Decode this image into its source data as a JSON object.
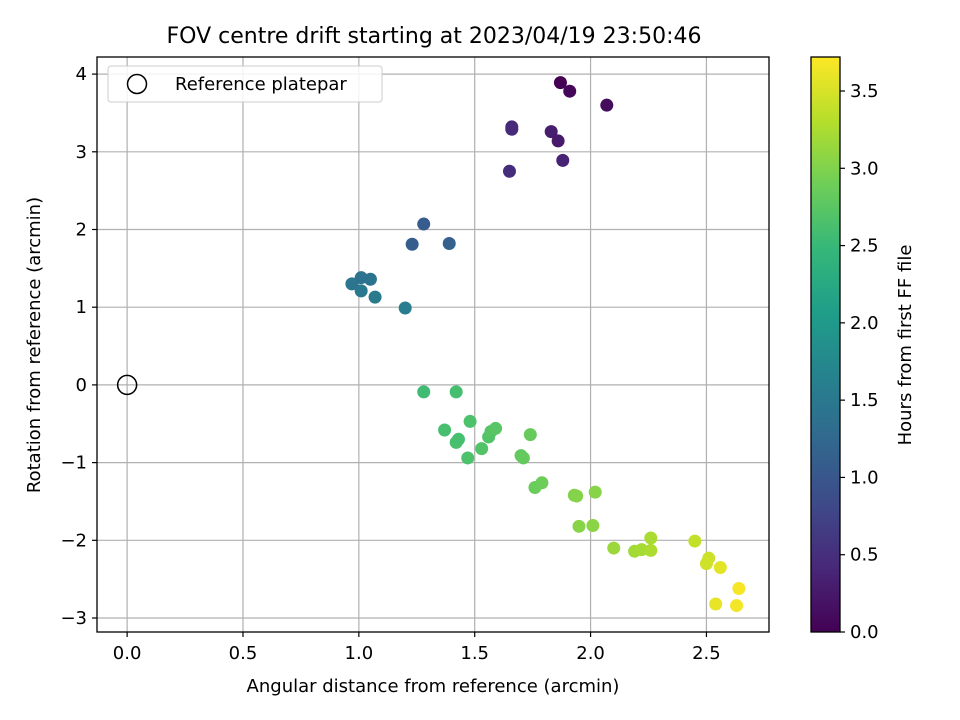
{
  "chart_data": {
    "type": "scatter",
    "title": "FOV centre drift starting at 2023/04/19 23:50:46",
    "xlabel": "Angular distance from reference (arcmin)",
    "ylabel": "Rotation from reference (arcmin)",
    "xlim": [
      -0.13,
      2.77
    ],
    "ylim": [
      -3.18,
      4.22
    ],
    "xticks": [
      0.0,
      0.5,
      1.0,
      1.5,
      2.0,
      2.5
    ],
    "xtick_labels": [
      "0.0",
      "0.5",
      "1.0",
      "1.5",
      "2.0",
      "2.5"
    ],
    "yticks": [
      -3,
      -2,
      -1,
      0,
      1,
      2,
      3,
      4
    ],
    "ytick_labels": [
      "−3",
      "−2",
      "−1",
      "0",
      "1",
      "2",
      "3",
      "4"
    ],
    "grid": true,
    "legend": {
      "placement": "top-left",
      "entries": [
        "Reference platepar"
      ]
    },
    "reference_point": {
      "x": 0.0,
      "y": 0.0,
      "marker": "open-circle"
    },
    "colorbar": {
      "label": "Hours from first FF file",
      "colormap": "viridis",
      "range": [
        0.0,
        3.72
      ],
      "ticks": [
        0.0,
        0.5,
        1.0,
        1.5,
        2.0,
        2.5,
        3.0,
        3.5
      ],
      "tick_labels": [
        "0.0",
        "0.5",
        "1.0",
        "1.5",
        "2.0",
        "2.5",
        "3.0",
        "3.5"
      ]
    },
    "points": [
      {
        "x": 1.87,
        "y": 3.89,
        "c": 0.0
      },
      {
        "x": 1.91,
        "y": 3.78,
        "c": 0.06
      },
      {
        "x": 2.07,
        "y": 3.6,
        "c": 0.12
      },
      {
        "x": 1.83,
        "y": 3.26,
        "c": 0.3
      },
      {
        "x": 1.86,
        "y": 3.14,
        "c": 0.26
      },
      {
        "x": 1.88,
        "y": 2.89,
        "c": 0.36
      },
      {
        "x": 1.66,
        "y": 3.32,
        "c": 0.4
      },
      {
        "x": 1.66,
        "y": 3.29,
        "c": 0.44
      },
      {
        "x": 1.65,
        "y": 2.75,
        "c": 0.48
      },
      {
        "x": 1.28,
        "y": 2.07,
        "c": 1.06
      },
      {
        "x": 1.23,
        "y": 1.81,
        "c": 1.1
      },
      {
        "x": 1.39,
        "y": 1.82,
        "c": 1.14
      },
      {
        "x": 0.97,
        "y": 1.3,
        "c": 1.46
      },
      {
        "x": 1.01,
        "y": 1.38,
        "c": 1.4
      },
      {
        "x": 1.05,
        "y": 1.36,
        "c": 1.42
      },
      {
        "x": 1.01,
        "y": 1.21,
        "c": 1.5
      },
      {
        "x": 1.07,
        "y": 1.13,
        "c": 1.52
      },
      {
        "x": 1.2,
        "y": 0.99,
        "c": 1.58
      },
      {
        "x": 1.28,
        "y": -0.09,
        "c": 2.55
      },
      {
        "x": 1.42,
        "y": -0.09,
        "c": 2.6
      },
      {
        "x": 1.37,
        "y": -0.58,
        "c": 2.62
      },
      {
        "x": 1.42,
        "y": -0.74,
        "c": 2.64
      },
      {
        "x": 1.43,
        "y": -0.7,
        "c": 2.62
      },
      {
        "x": 1.47,
        "y": -0.94,
        "c": 2.66
      },
      {
        "x": 1.48,
        "y": -0.47,
        "c": 2.66
      },
      {
        "x": 1.53,
        "y": -0.82,
        "c": 2.7
      },
      {
        "x": 1.56,
        "y": -0.67,
        "c": 2.7
      },
      {
        "x": 1.57,
        "y": -0.6,
        "c": 2.72
      },
      {
        "x": 1.59,
        "y": -0.56,
        "c": 2.74
      },
      {
        "x": 1.7,
        "y": -0.91,
        "c": 2.8
      },
      {
        "x": 1.71,
        "y": -0.94,
        "c": 2.82
      },
      {
        "x": 1.74,
        "y": -0.64,
        "c": 2.84
      },
      {
        "x": 1.76,
        "y": -1.32,
        "c": 2.86
      },
      {
        "x": 1.79,
        "y": -1.26,
        "c": 2.88
      },
      {
        "x": 1.93,
        "y": -1.42,
        "c": 3.0
      },
      {
        "x": 1.94,
        "y": -1.43,
        "c": 3.02
      },
      {
        "x": 1.95,
        "y": -1.82,
        "c": 3.04
      },
      {
        "x": 2.01,
        "y": -1.81,
        "c": 3.06
      },
      {
        "x": 2.02,
        "y": -1.38,
        "c": 3.04
      },
      {
        "x": 2.1,
        "y": -2.1,
        "c": 3.16
      },
      {
        "x": 2.19,
        "y": -2.14,
        "c": 3.2
      },
      {
        "x": 2.22,
        "y": -2.12,
        "c": 3.22
      },
      {
        "x": 2.26,
        "y": -1.97,
        "c": 3.24
      },
      {
        "x": 2.26,
        "y": -2.13,
        "c": 3.26
      },
      {
        "x": 2.45,
        "y": -2.01,
        "c": 3.38
      },
      {
        "x": 2.51,
        "y": -2.23,
        "c": 3.44
      },
      {
        "x": 2.5,
        "y": -2.3,
        "c": 3.46
      },
      {
        "x": 2.56,
        "y": -2.35,
        "c": 3.56
      },
      {
        "x": 2.54,
        "y": -2.82,
        "c": 3.6
      },
      {
        "x": 2.63,
        "y": -2.84,
        "c": 3.66
      },
      {
        "x": 2.64,
        "y": -2.62,
        "c": 3.68
      }
    ]
  }
}
